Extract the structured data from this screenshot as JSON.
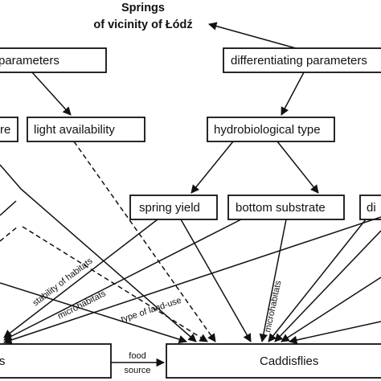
{
  "title": {
    "line1": "Springs",
    "line2": "of vicinity of Łódź"
  },
  "nodes": {
    "parameters_left": "parameters",
    "differentiating": "differentiating parameters",
    "temperature_fragment": "re",
    "light": "light availability",
    "hydrobiological": "hydrobiological type",
    "spring_yield": "spring yield",
    "bottom_substrate": "bottom substrate",
    "right_fragment": "di",
    "left_bottom_fragment": "s",
    "caddisflies": "Caddisflies"
  },
  "edge_labels": {
    "stability": "stability of habitats",
    "microhabitats_left": "microhabitats",
    "land_use": "type of land-use",
    "microhabitats_right": "microhabitats",
    "food": "food",
    "source": "source"
  }
}
